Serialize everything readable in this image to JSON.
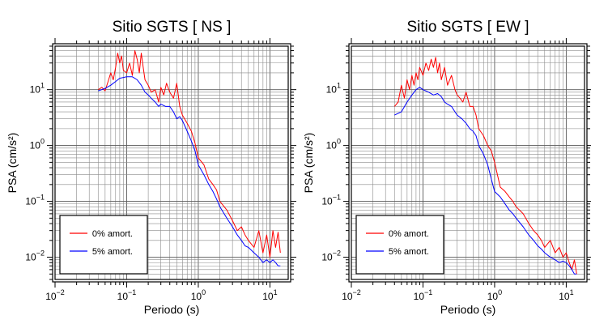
{
  "chart_data": [
    {
      "type": "line",
      "title": "Sitio SGTS [ NS ]",
      "xlabel": "Periodo (s)",
      "ylabel": "PSA (cm/s²)",
      "xscale": "log",
      "yscale": "log",
      "xlim": [
        0.01,
        18
      ],
      "ylim": [
        0.004,
        60
      ],
      "xticks": [
        {
          "base": "10",
          "exp": "−2",
          "value": 0.01
        },
        {
          "base": "10",
          "exp": "−1",
          "value": 0.1
        },
        {
          "base": "10",
          "exp": "0",
          "value": 1
        },
        {
          "base": "10",
          "exp": "1",
          "value": 10
        }
      ],
      "yticks": [
        {
          "base": "10",
          "exp": "−2",
          "value": 0.01
        },
        {
          "base": "10",
          "exp": "−1",
          "value": 0.1
        },
        {
          "base": "10",
          "exp": "0",
          "value": 1
        },
        {
          "base": "10",
          "exp": "1",
          "value": 10
        }
      ],
      "grid": true,
      "legend_position": "bottom-left",
      "series": [
        {
          "name": "0% amort.",
          "color": "#ff0000",
          "x": [
            0.04,
            0.045,
            0.05,
            0.055,
            0.06,
            0.065,
            0.07,
            0.075,
            0.08,
            0.085,
            0.09,
            0.1,
            0.11,
            0.12,
            0.13,
            0.14,
            0.15,
            0.16,
            0.17,
            0.18,
            0.2,
            0.22,
            0.25,
            0.28,
            0.3,
            0.33,
            0.36,
            0.4,
            0.45,
            0.5,
            0.55,
            0.6,
            0.7,
            0.8,
            0.9,
            1.0,
            1.2,
            1.4,
            1.6,
            1.8,
            2.0,
            2.5,
            3.0,
            3.5,
            4.0,
            4.5,
            5.0,
            6.0,
            7.0,
            8.0,
            9.0,
            10.0,
            11.0,
            12.0,
            13.0,
            14.0
          ],
          "values": [
            10,
            11,
            9.5,
            14,
            20,
            15,
            25,
            45,
            30,
            40,
            22,
            20,
            30,
            18,
            50,
            35,
            20,
            45,
            25,
            15,
            12,
            9,
            10,
            6,
            11,
            8,
            13,
            9,
            7,
            13,
            5,
            3.5,
            2.5,
            1.8,
            1.1,
            0.6,
            0.45,
            0.25,
            0.2,
            0.16,
            0.1,
            0.07,
            0.045,
            0.03,
            0.035,
            0.025,
            0.02,
            0.015,
            0.03,
            0.012,
            0.025,
            0.01,
            0.03,
            0.015,
            0.028,
            0.012
          ]
        },
        {
          "name": "5% amort.",
          "color": "#0000ff",
          "x": [
            0.04,
            0.05,
            0.06,
            0.07,
            0.08,
            0.1,
            0.12,
            0.14,
            0.16,
            0.18,
            0.2,
            0.22,
            0.25,
            0.28,
            0.3,
            0.35,
            0.4,
            0.45,
            0.5,
            0.55,
            0.6,
            0.7,
            0.8,
            0.9,
            1.0,
            1.2,
            1.4,
            1.6,
            1.8,
            2.0,
            2.5,
            3.0,
            3.5,
            4.0,
            4.5,
            5.0,
            6.0,
            7.0,
            8.0,
            9.0,
            10.0,
            11.0,
            12.0,
            13.0,
            14.0
          ],
          "values": [
            9.5,
            10.5,
            12,
            14,
            16,
            17,
            17,
            15,
            12,
            9,
            8,
            7,
            6,
            5,
            5.5,
            5,
            5,
            4,
            3,
            3.3,
            2.8,
            1.8,
            1.2,
            0.8,
            0.45,
            0.3,
            0.2,
            0.15,
            0.11,
            0.08,
            0.05,
            0.035,
            0.025,
            0.02,
            0.016,
            0.015,
            0.012,
            0.01,
            0.008,
            0.009,
            0.008,
            0.009,
            0.008,
            0.007,
            0.007
          ]
        }
      ]
    },
    {
      "type": "line",
      "title": "Sitio SGTS [ EW ]",
      "xlabel": "Periodo (s)",
      "ylabel": "PSA (cm/s²)",
      "xscale": "log",
      "yscale": "log",
      "xlim": [
        0.01,
        18
      ],
      "ylim": [
        0.004,
        60
      ],
      "xticks": [
        {
          "base": "10",
          "exp": "−2",
          "value": 0.01
        },
        {
          "base": "10",
          "exp": "−1",
          "value": 0.1
        },
        {
          "base": "10",
          "exp": "0",
          "value": 1
        },
        {
          "base": "10",
          "exp": "1",
          "value": 10
        }
      ],
      "yticks": [
        {
          "base": "10",
          "exp": "−2",
          "value": 0.01
        },
        {
          "base": "10",
          "exp": "−1",
          "value": 0.1
        },
        {
          "base": "10",
          "exp": "0",
          "value": 1
        },
        {
          "base": "10",
          "exp": "1",
          "value": 10
        }
      ],
      "grid": true,
      "legend_position": "bottom-left",
      "series": [
        {
          "name": "0% amort.",
          "color": "#ff0000",
          "x": [
            0.04,
            0.045,
            0.05,
            0.055,
            0.06,
            0.065,
            0.07,
            0.075,
            0.08,
            0.085,
            0.09,
            0.1,
            0.11,
            0.12,
            0.13,
            0.14,
            0.15,
            0.16,
            0.17,
            0.18,
            0.2,
            0.22,
            0.25,
            0.28,
            0.3,
            0.33,
            0.36,
            0.4,
            0.45,
            0.5,
            0.55,
            0.6,
            0.7,
            0.8,
            0.9,
            1.0,
            1.2,
            1.4,
            1.6,
            1.8,
            2.0,
            2.5,
            3.0,
            3.5,
            4.0,
            4.5,
            5.0,
            6.0,
            7.0,
            8.0,
            9.0,
            10.0,
            11.0,
            12.0,
            13.0,
            14.0
          ],
          "values": [
            5,
            6,
            12,
            7,
            15,
            10,
            18,
            12,
            20,
            15,
            25,
            18,
            30,
            22,
            35,
            25,
            38,
            20,
            30,
            15,
            25,
            12,
            18,
            10,
            8,
            7,
            6,
            9,
            5,
            5,
            3.5,
            2,
            1.5,
            1.0,
            0.8,
            0.5,
            0.18,
            0.15,
            0.12,
            0.1,
            0.08,
            0.06,
            0.04,
            0.03,
            0.025,
            0.02,
            0.015,
            0.02,
            0.012,
            0.015,
            0.01,
            0.012,
            0.008,
            0.006,
            0.009,
            0.005
          ]
        },
        {
          "name": "5% amort.",
          "color": "#0000ff",
          "x": [
            0.04,
            0.05,
            0.06,
            0.07,
            0.08,
            0.09,
            0.1,
            0.12,
            0.14,
            0.16,
            0.18,
            0.2,
            0.22,
            0.25,
            0.28,
            0.3,
            0.35,
            0.4,
            0.45,
            0.5,
            0.55,
            0.6,
            0.7,
            0.8,
            0.9,
            1.0,
            1.2,
            1.4,
            1.6,
            1.8,
            2.0,
            2.5,
            3.0,
            3.5,
            4.0,
            4.5,
            5.0,
            6.0,
            7.0,
            8.0,
            9.0,
            10.0,
            11.0,
            12.0,
            13.0,
            14.0
          ],
          "values": [
            3.5,
            4,
            6,
            8,
            10,
            11,
            10,
            9,
            8,
            8.5,
            7.5,
            6,
            5.5,
            5,
            4,
            3.5,
            3,
            2.5,
            2,
            1.8,
            1.5,
            1.0,
            0.7,
            0.45,
            0.25,
            0.15,
            0.12,
            0.09,
            0.07,
            0.06,
            0.05,
            0.035,
            0.025,
            0.02,
            0.016,
            0.014,
            0.012,
            0.01,
            0.009,
            0.008,
            0.0085,
            0.008,
            0.007,
            0.006,
            0.005,
            0.005
          ]
        }
      ]
    }
  ]
}
